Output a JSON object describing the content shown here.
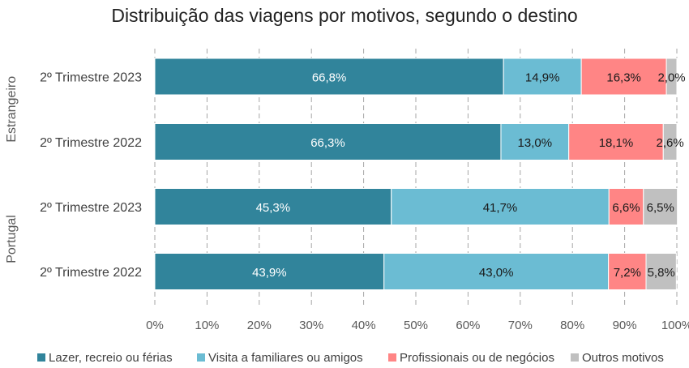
{
  "chart_data": {
    "type": "bar",
    "orientation": "horizontal",
    "stacked": true,
    "title": "Distribuição das viagens por motivos, segundo o destino",
    "groups": [
      {
        "label": "Estrangeiro",
        "rows": [
          0,
          1
        ]
      },
      {
        "label": "Portugal",
        "rows": [
          2,
          3
        ]
      }
    ],
    "categories": [
      "2º Trimestre 2023",
      "2º Trimestre 2022",
      "2º Trimestre 2023",
      "2º Trimestre 2022"
    ],
    "series": [
      {
        "name": "Lazer, recreio ou férias",
        "color": "#31849b",
        "label_color": "#ffffff",
        "values": [
          66.8,
          66.3,
          45.3,
          43.9
        ],
        "labels": [
          "66,8%",
          "66,3%",
          "45,3%",
          "43,9%"
        ]
      },
      {
        "name": "Visita a familiares ou amigos",
        "color": "#6bbcd3",
        "label_color": "#1a1a1a",
        "values": [
          14.9,
          13.0,
          41.7,
          43.0
        ],
        "labels": [
          "14,9%",
          "13,0%",
          "41,7%",
          "43,0%"
        ]
      },
      {
        "name": "Profissionais ou de negócios",
        "color": "#ff8585",
        "label_color": "#1a1a1a",
        "values": [
          16.3,
          18.1,
          6.6,
          7.2
        ],
        "labels": [
          "16,3%",
          "18,1%",
          "6,6%",
          "7,2%"
        ]
      },
      {
        "name": "Outros motivos",
        "color": "#c0c0c0",
        "label_color": "#1a1a1a",
        "values": [
          2.0,
          2.6,
          6.5,
          5.8
        ],
        "labels": [
          "2,0%",
          "2,6%",
          "6,5%",
          "5,8%"
        ]
      }
    ],
    "x_ticks": [
      "0%",
      "10%",
      "20%",
      "30%",
      "40%",
      "50%",
      "60%",
      "70%",
      "80%",
      "90%",
      "100%"
    ],
    "xlim": [
      0,
      100
    ],
    "grid": "vertical dashed",
    "legend": "bottom"
  }
}
